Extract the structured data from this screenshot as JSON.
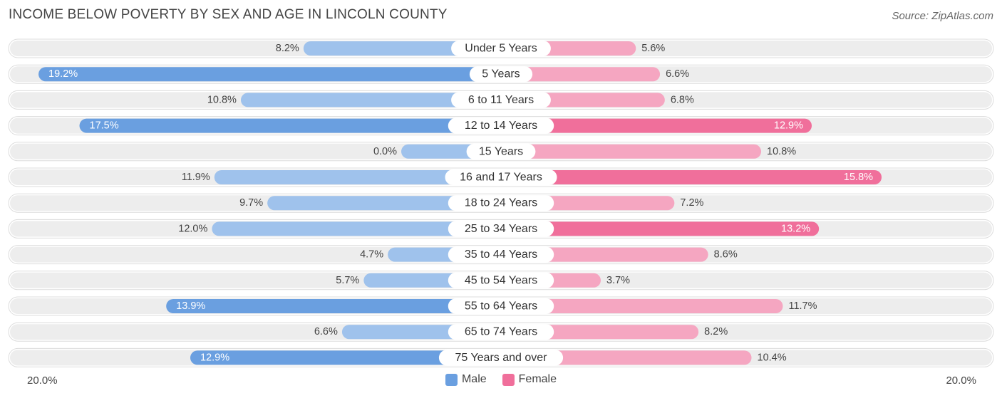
{
  "title": "INCOME BELOW POVERTY BY SEX AND AGE IN LINCOLN COUNTY",
  "source": "Source: ZipAtlas.com",
  "colors": {
    "male": "#6a9fe0",
    "male_light": "#9fc2ec",
    "female": "#f06f9b",
    "female_light": "#f5a6c1",
    "row_bg": "#ededed"
  },
  "chart_data": {
    "type": "bar",
    "orientation": "horizontal-diverging",
    "title": "INCOME BELOW POVERTY BY SEX AND AGE IN LINCOLN COUNTY",
    "categories": [
      "Under 5 Years",
      "5 Years",
      "6 to 11 Years",
      "12 to 14 Years",
      "15 Years",
      "16 and 17 Years",
      "18 to 24 Years",
      "25 to 34 Years",
      "35 to 44 Years",
      "45 to 54 Years",
      "55 to 64 Years",
      "65 to 74 Years",
      "75 Years and over"
    ],
    "series": [
      {
        "name": "Male",
        "values": [
          8.2,
          19.2,
          10.8,
          17.5,
          0.0,
          11.9,
          9.7,
          12.0,
          4.7,
          5.7,
          13.9,
          6.6,
          12.9
        ],
        "labels": [
          "8.2%",
          "19.2%",
          "10.8%",
          "17.5%",
          "0.0%",
          "11.9%",
          "9.7%",
          "12.0%",
          "4.7%",
          "5.7%",
          "13.9%",
          "6.6%",
          "12.9%"
        ]
      },
      {
        "name": "Female",
        "values": [
          5.6,
          6.6,
          6.8,
          12.9,
          10.8,
          15.8,
          7.2,
          13.2,
          8.6,
          3.7,
          11.7,
          8.2,
          10.4
        ],
        "labels": [
          "5.6%",
          "6.6%",
          "6.8%",
          "12.9%",
          "10.8%",
          "15.8%",
          "7.2%",
          "13.2%",
          "8.6%",
          "3.7%",
          "11.7%",
          "8.2%",
          "10.4%"
        ]
      }
    ],
    "xlim": [
      -20,
      20
    ],
    "axis_labels": {
      "left": "20.0%",
      "right": "20.0%"
    },
    "legend": [
      "Male",
      "Female"
    ],
    "legend_position": "bottom-center"
  }
}
